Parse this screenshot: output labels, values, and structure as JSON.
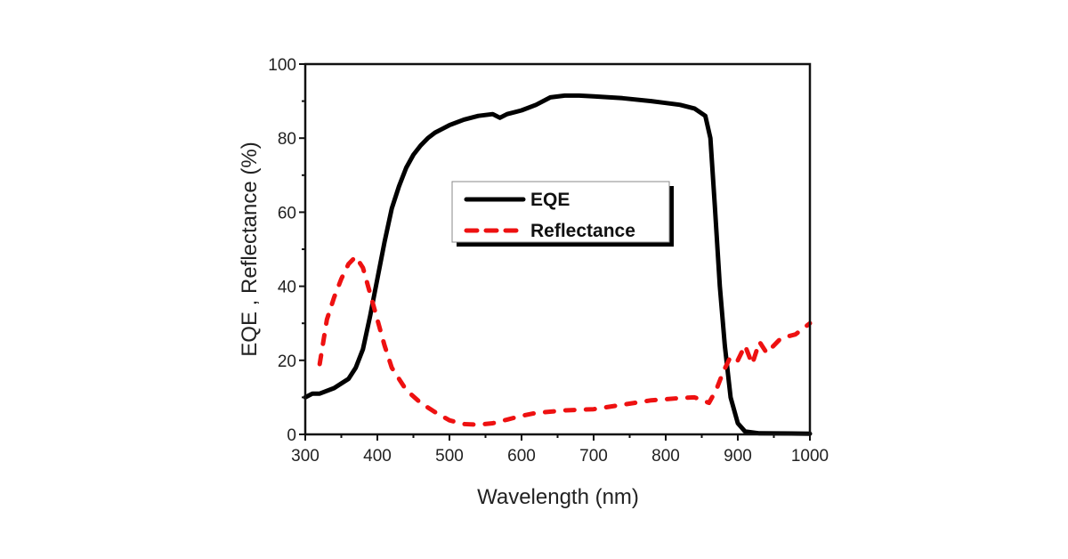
{
  "chart_data": {
    "type": "line",
    "title": "",
    "xlabel": "Wavelength (nm)",
    "ylabel": "EQE , Reflectance (%)",
    "xlim": [
      300,
      1000
    ],
    "ylim": [
      0,
      100
    ],
    "xticks": [
      300,
      400,
      500,
      600,
      700,
      800,
      900,
      1000
    ],
    "yticks": [
      0,
      20,
      40,
      60,
      80,
      100
    ],
    "grid": false,
    "legend": "center",
    "series": [
      {
        "name": "EQE",
        "color": "#000000",
        "style": "solid",
        "x": [
          300,
          310,
          320,
          340,
          360,
          370,
          380,
          390,
          400,
          410,
          420,
          430,
          440,
          450,
          460,
          470,
          480,
          490,
          500,
          520,
          540,
          560,
          570,
          580,
          600,
          620,
          640,
          660,
          680,
          700,
          740,
          780,
          800,
          820,
          840,
          855,
          862,
          868,
          875,
          882,
          890,
          900,
          910,
          930,
          1000
        ],
        "y": [
          10,
          11,
          11,
          12.5,
          15,
          18,
          23,
          32,
          42,
          52,
          61,
          67,
          72,
          75.5,
          78,
          80,
          81.5,
          82.5,
          83.5,
          85,
          86,
          86.5,
          85.5,
          86.5,
          87.5,
          89,
          91,
          91.5,
          91.5,
          91.3,
          90.8,
          90,
          89.5,
          89,
          88,
          86,
          80,
          62,
          40,
          24,
          10,
          3,
          0.8,
          0.3,
          0.2
        ]
      },
      {
        "name": "Reflectance",
        "color": "#ee1111",
        "style": "dashed",
        "x": [
          320,
          330,
          340,
          350,
          360,
          370,
          380,
          390,
          400,
          410,
          420,
          440,
          460,
          480,
          500,
          520,
          540,
          560,
          580,
          600,
          620,
          660,
          700,
          740,
          780,
          820,
          840,
          860,
          870,
          880,
          890,
          900,
          910,
          920,
          930,
          940,
          960,
          980,
          1000
        ],
        "y": [
          19,
          31,
          37,
          42,
          46,
          48,
          45,
          38,
          31,
          24,
          18,
          12,
          8.5,
          6,
          3.8,
          2.8,
          2.6,
          3,
          4,
          5,
          5.8,
          6.5,
          6.8,
          8,
          9.2,
          9.8,
          10,
          8.5,
          12,
          17,
          21,
          20,
          24,
          19,
          25,
          22,
          26,
          27,
          30
        ]
      }
    ]
  }
}
